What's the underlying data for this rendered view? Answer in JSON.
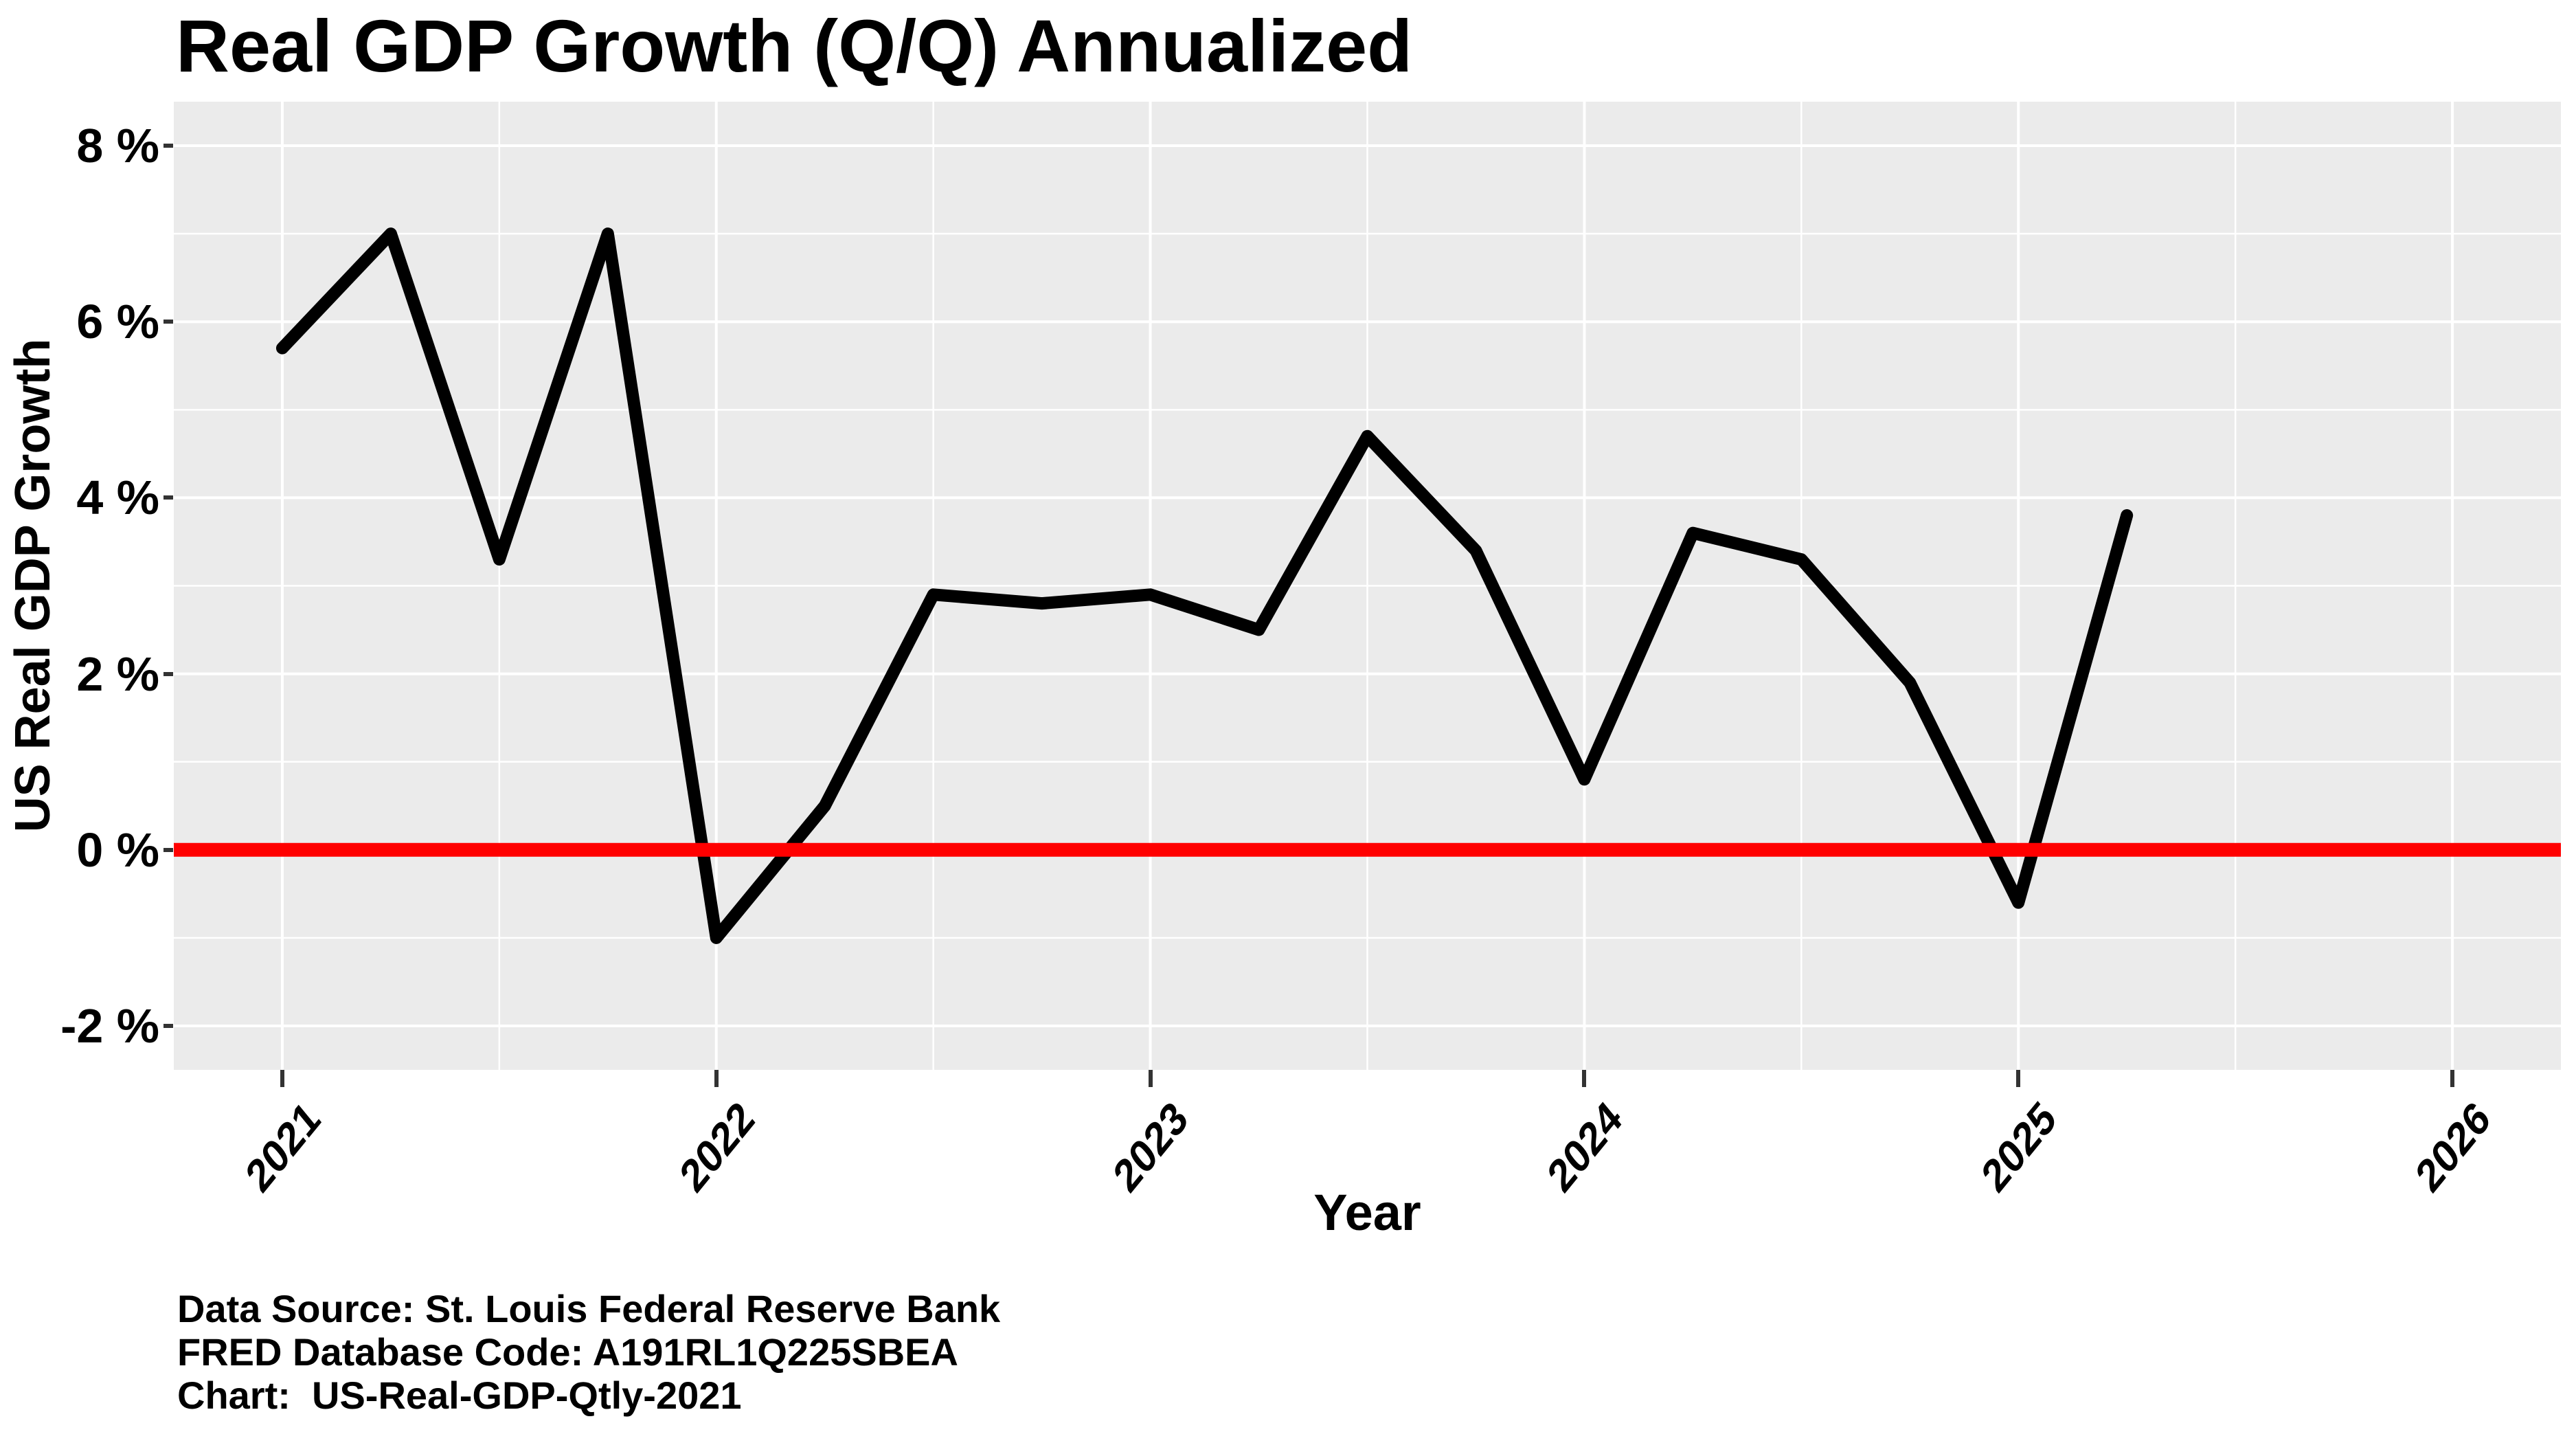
{
  "title": "Real GDP Growth (Q/Q) Annualized",
  "axes": {
    "x_title": "Year",
    "y_title": "US Real GDP Growth",
    "x_ticks": [
      {
        "value": 2021,
        "label": "2021"
      },
      {
        "value": 2022,
        "label": "2022"
      },
      {
        "value": 2023,
        "label": "2023"
      },
      {
        "value": 2024,
        "label": "2024"
      },
      {
        "value": 2025,
        "label": "2025"
      },
      {
        "value": 2026,
        "label": "2026"
      }
    ],
    "x_minor": [
      2021.5,
      2022.5,
      2023.5,
      2024.5,
      2025.5
    ],
    "y_ticks": [
      {
        "value": 8,
        "label": "8 %"
      },
      {
        "value": 6,
        "label": "6 %"
      },
      {
        "value": 4,
        "label": "4 %"
      },
      {
        "value": 2,
        "label": "2 %"
      },
      {
        "value": 0,
        "label": "0 %"
      },
      {
        "value": -2,
        "label": "-2 %"
      }
    ],
    "y_minor": [
      7,
      5,
      3,
      1,
      -1
    ]
  },
  "footer": {
    "line1": "Data Source: St. Louis Federal Reserve Bank",
    "line2": "FRED Database Code: A191RL1Q225SBEA",
    "line3": "Chart:  US-Real-GDP-Qtly-2021"
  },
  "colors": {
    "panel_background": "#EBEBEB",
    "grid": "#FFFFFF",
    "series_line": "#000000",
    "zero_line": "#FF0000",
    "tick_mark": "#333333",
    "text": "#000000"
  },
  "chart_data": {
    "type": "line",
    "title": "Real GDP Growth (Q/Q) Annualized",
    "xlabel": "Year",
    "ylabel": "US Real GDP Growth",
    "x": [
      2021.0,
      2021.25,
      2021.5,
      2021.75,
      2022.0,
      2022.25,
      2022.5,
      2022.75,
      2023.0,
      2023.25,
      2023.5,
      2023.75,
      2024.0,
      2024.25,
      2024.5,
      2024.75,
      2025.0,
      2025.25
    ],
    "quarters": [
      "2021 Q1",
      "2021 Q2",
      "2021 Q3",
      "2021 Q4",
      "2022 Q1",
      "2022 Q2",
      "2022 Q3",
      "2022 Q4",
      "2023 Q1",
      "2023 Q2",
      "2023 Q3",
      "2023 Q4",
      "2024 Q1",
      "2024 Q2",
      "2024 Q3",
      "2024 Q4",
      "2025 Q1",
      "2025 Q2"
    ],
    "series": [
      {
        "name": "US Real GDP Growth (Q/Q annualized, %)",
        "values": [
          5.7,
          7.0,
          3.3,
          7.0,
          -1.0,
          0.5,
          2.9,
          2.8,
          2.9,
          2.5,
          4.7,
          3.4,
          0.8,
          3.6,
          3.3,
          1.9,
          -0.6,
          3.8
        ]
      }
    ],
    "annotations": [
      {
        "type": "hline",
        "y": 0,
        "color": "#FF0000",
        "width": 20
      }
    ],
    "xlim": [
      2020.75,
      2026.25
    ],
    "ylim": [
      -2.5,
      8.5
    ],
    "grid": "on",
    "legend": "none"
  }
}
